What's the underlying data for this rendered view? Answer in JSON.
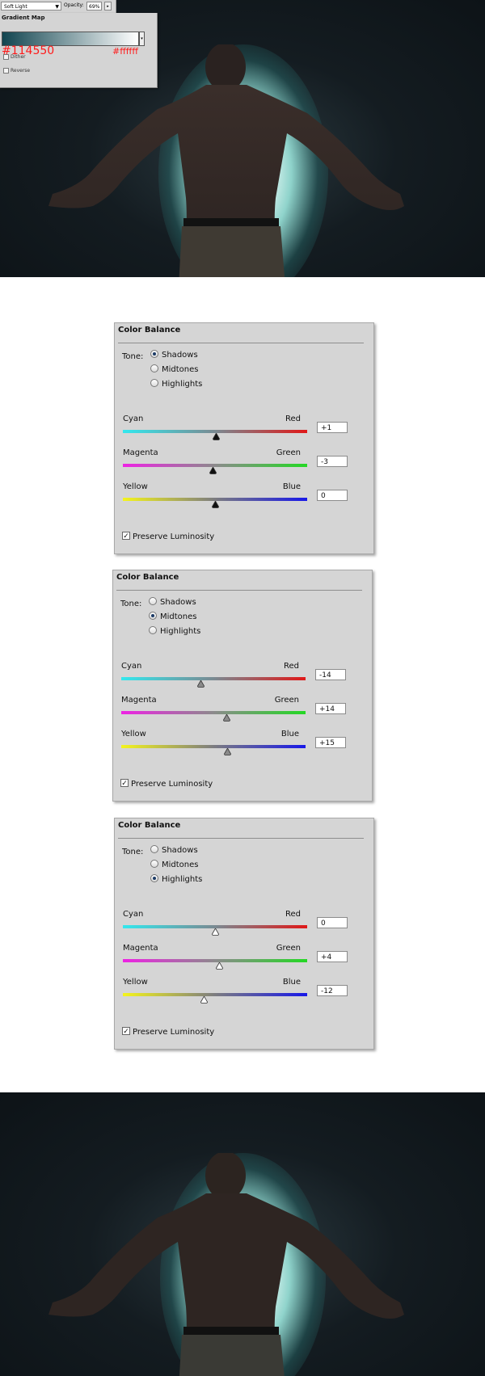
{
  "gradient_map": {
    "blend_mode": "Soft Light",
    "opacity_label": "Opacity:",
    "opacity_value": "69%",
    "title": "Gradient Map",
    "color_start": "#114550",
    "color_end": "#ffffff",
    "hex_start_label": "#114550",
    "hex_end_label": "#ffffff",
    "dither_label": "Dither",
    "reverse_label": "Reverse",
    "label_color": "#ff1a1a"
  },
  "color_balance_panels": [
    {
      "title": "Color Balance",
      "tone_label": "Tone:",
      "tones": [
        "Shadows",
        "Midtones",
        "Highlights"
      ],
      "selected_tone": "Shadows",
      "sliders": [
        {
          "left": "Cyan",
          "right": "Red",
          "value": "+1",
          "position": 0.505
        },
        {
          "left": "Magenta",
          "right": "Green",
          "value": "-3",
          "position": 0.485
        },
        {
          "left": "Yellow",
          "right": "Blue",
          "value": "0",
          "position": 0.5
        }
      ],
      "thumb_style": "black",
      "preserve_label": "Preserve Luminosity",
      "preserve_checked": true
    },
    {
      "title": "Color Balance",
      "tone_label": "Tone:",
      "tones": [
        "Shadows",
        "Midtones",
        "Highlights"
      ],
      "selected_tone": "Midtones",
      "sliders": [
        {
          "left": "Cyan",
          "right": "Red",
          "value": "-14",
          "position": 0.43
        },
        {
          "left": "Magenta",
          "right": "Green",
          "value": "+14",
          "position": 0.57
        },
        {
          "left": "Yellow",
          "right": "Blue",
          "value": "+15",
          "position": 0.575
        }
      ],
      "thumb_style": "gray",
      "preserve_label": "Preserve Luminosity",
      "preserve_checked": true
    },
    {
      "title": "Color Balance",
      "tone_label": "Tone:",
      "tones": [
        "Shadows",
        "Midtones",
        "Highlights"
      ],
      "selected_tone": "Highlights",
      "sliders": [
        {
          "left": "Cyan",
          "right": "Red",
          "value": "0",
          "position": 0.5
        },
        {
          "left": "Magenta",
          "right": "Green",
          "value": "+4",
          "position": 0.52
        },
        {
          "left": "Yellow",
          "right": "Blue",
          "value": "-12",
          "position": 0.44
        }
      ],
      "thumb_style": "white",
      "preserve_label": "Preserve Luminosity",
      "preserve_checked": true
    }
  ],
  "track_colors": {
    "cyan_red": [
      "#33e8ee",
      "#7a8a92",
      "#e01818"
    ],
    "magenta_green": [
      "#ee22e4",
      "#8c8a8c",
      "#24d824"
    ],
    "yellow_blue": [
      "#f4f41c",
      "#7c7c80",
      "#1818e8"
    ]
  }
}
